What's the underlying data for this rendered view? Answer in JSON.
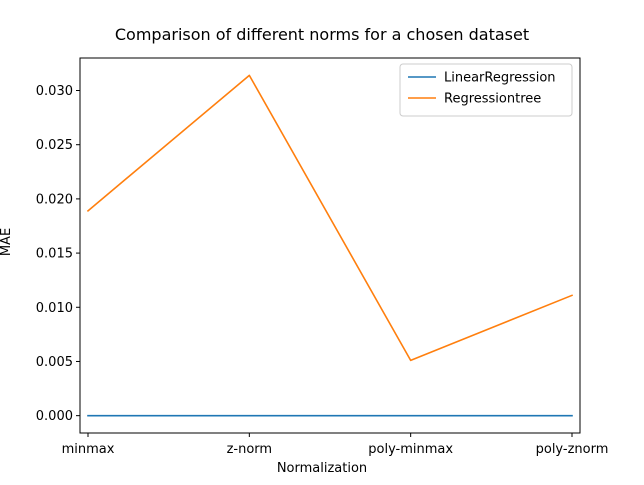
{
  "chart_data": {
    "type": "line",
    "title": "Comparison of different norms for a chosen dataset",
    "xlabel": "Normalization",
    "ylabel": "MAE",
    "categories": [
      "minmax",
      "z-norm",
      "poly-minmax",
      "poly-znorm"
    ],
    "series": [
      {
        "name": "LinearRegression",
        "color": "#1f77b4",
        "values": [
          0.0,
          0.0,
          0.0,
          0.0
        ]
      },
      {
        "name": "Regressiontree",
        "color": "#ff7f0e",
        "values": [
          0.0189,
          0.0314,
          0.0051,
          0.0111
        ]
      }
    ],
    "ylim": [
      -0.0016,
      0.033
    ],
    "yticks": [
      0.0,
      0.005,
      0.01,
      0.015,
      0.02,
      0.025,
      0.03
    ],
    "ytick_labels": [
      "0.000",
      "0.005",
      "0.010",
      "0.015",
      "0.020",
      "0.025",
      "0.030"
    ],
    "grid": false,
    "legend_position": "top-right"
  }
}
